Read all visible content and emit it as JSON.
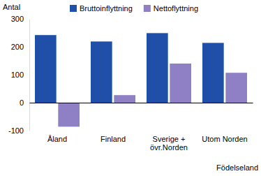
{
  "chart_data": {
    "type": "bar",
    "y_label": "Antal",
    "x_label": "Födelseland",
    "categories": [
      "Åland",
      "Finland",
      "Sverige +\növr.Norden",
      "Utom Norden"
    ],
    "series": [
      {
        "name": "Bruttoinflyttning",
        "color": "#1f4fa8",
        "values": [
          242,
          219,
          249,
          214
        ]
      },
      {
        "name": "Nettoflyttning",
        "color": "#8f7fc4",
        "values": [
          -86,
          27,
          140,
          107
        ]
      }
    ],
    "ylim": [
      -100,
      300
    ],
    "yticks": [
      -100,
      0,
      100,
      200,
      300
    ],
    "grid": false,
    "legend": "top"
  }
}
